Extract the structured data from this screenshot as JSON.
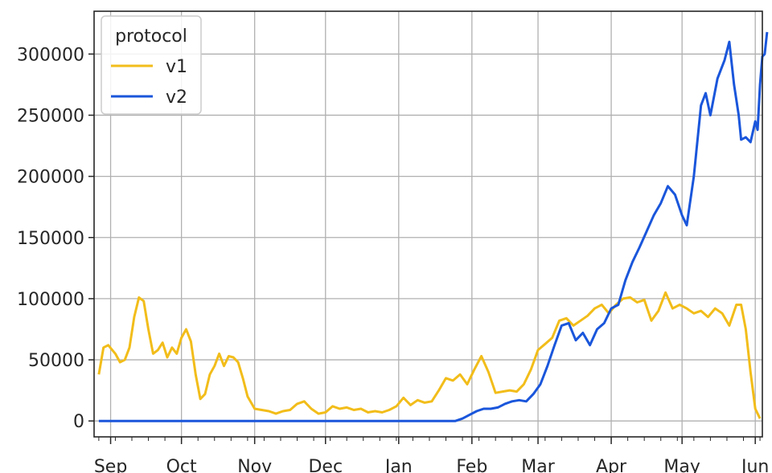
{
  "chart_data": {
    "type": "line",
    "title": "",
    "xlabel": "",
    "ylabel": "",
    "x_range": [
      "2020-08-25",
      "2021-06-04"
    ],
    "x_ticks": [
      {
        "label": "Sep",
        "date": "2020-09-01"
      },
      {
        "label": "Oct",
        "date": "2020-10-01"
      },
      {
        "label": "Nov",
        "date": "2020-11-01"
      },
      {
        "label": "Dec",
        "date": "2020-12-01"
      },
      {
        "label": "Jan",
        "date": "2021-01-01"
      },
      {
        "label": "Feb",
        "date": "2021-02-01"
      },
      {
        "label": "Mar",
        "date": "2021-03-01"
      },
      {
        "label": "Apr",
        "date": "2021-04-01"
      },
      {
        "label": "May",
        "date": "2021-05-01"
      },
      {
        "label": "Jun",
        "date": "2021-06-01"
      }
    ],
    "y_ticks": [
      0,
      50000,
      100000,
      150000,
      200000,
      250000,
      300000
    ],
    "y_tick_labels": [
      "0",
      "50000",
      "100000",
      "150000",
      "200000",
      "250000",
      "300000"
    ],
    "ylim": [
      -13000,
      335000
    ],
    "grid": true,
    "legend": {
      "title": "protocol",
      "placement": "top-left"
    },
    "series": [
      {
        "name": "v1",
        "color": "#f2bd1a",
        "points": [
          [
            "2020-08-27",
            38000
          ],
          [
            "2020-08-29",
            60000
          ],
          [
            "2020-08-31",
            62000
          ],
          [
            "2020-09-03",
            55000
          ],
          [
            "2020-09-05",
            48000
          ],
          [
            "2020-09-07",
            50000
          ],
          [
            "2020-09-09",
            60000
          ],
          [
            "2020-09-11",
            85000
          ],
          [
            "2020-09-13",
            101000
          ],
          [
            "2020-09-15",
            98000
          ],
          [
            "2020-09-17",
            75000
          ],
          [
            "2020-09-19",
            55000
          ],
          [
            "2020-09-21",
            58000
          ],
          [
            "2020-09-23",
            64000
          ],
          [
            "2020-09-25",
            52000
          ],
          [
            "2020-09-27",
            60000
          ],
          [
            "2020-09-29",
            55000
          ],
          [
            "2020-10-01",
            68000
          ],
          [
            "2020-10-03",
            75000
          ],
          [
            "2020-10-05",
            65000
          ],
          [
            "2020-10-07",
            38000
          ],
          [
            "2020-10-09",
            18000
          ],
          [
            "2020-10-11",
            22000
          ],
          [
            "2020-10-13",
            38000
          ],
          [
            "2020-10-15",
            45000
          ],
          [
            "2020-10-17",
            55000
          ],
          [
            "2020-10-19",
            45000
          ],
          [
            "2020-10-21",
            53000
          ],
          [
            "2020-10-23",
            52000
          ],
          [
            "2020-10-25",
            48000
          ],
          [
            "2020-10-27",
            35000
          ],
          [
            "2020-10-29",
            20000
          ],
          [
            "2020-11-01",
            10000
          ],
          [
            "2020-11-04",
            9000
          ],
          [
            "2020-11-07",
            8000
          ],
          [
            "2020-11-10",
            6000
          ],
          [
            "2020-11-13",
            8000
          ],
          [
            "2020-11-16",
            9000
          ],
          [
            "2020-11-19",
            14000
          ],
          [
            "2020-11-22",
            16000
          ],
          [
            "2020-11-25",
            10000
          ],
          [
            "2020-11-28",
            6000
          ],
          [
            "2020-12-01",
            7000
          ],
          [
            "2020-12-04",
            12000
          ],
          [
            "2020-12-07",
            10000
          ],
          [
            "2020-12-10",
            11000
          ],
          [
            "2020-12-13",
            9000
          ],
          [
            "2020-12-16",
            10000
          ],
          [
            "2020-12-19",
            7000
          ],
          [
            "2020-12-22",
            8000
          ],
          [
            "2020-12-25",
            7000
          ],
          [
            "2020-12-28",
            9000
          ],
          [
            "2020-12-31",
            12000
          ],
          [
            "2021-01-03",
            19000
          ],
          [
            "2021-01-06",
            13000
          ],
          [
            "2021-01-09",
            17000
          ],
          [
            "2021-01-12",
            15000
          ],
          [
            "2021-01-15",
            16000
          ],
          [
            "2021-01-18",
            25000
          ],
          [
            "2021-01-21",
            35000
          ],
          [
            "2021-01-24",
            33000
          ],
          [
            "2021-01-27",
            38000
          ],
          [
            "2021-01-30",
            30000
          ],
          [
            "2021-02-02",
            42000
          ],
          [
            "2021-02-05",
            53000
          ],
          [
            "2021-02-08",
            40000
          ],
          [
            "2021-02-11",
            23000
          ],
          [
            "2021-02-14",
            24000
          ],
          [
            "2021-02-17",
            25000
          ],
          [
            "2021-02-20",
            24000
          ],
          [
            "2021-02-23",
            30000
          ],
          [
            "2021-02-26",
            42000
          ],
          [
            "2021-03-01",
            58000
          ],
          [
            "2021-03-04",
            63000
          ],
          [
            "2021-03-07",
            68000
          ],
          [
            "2021-03-10",
            82000
          ],
          [
            "2021-03-13",
            84000
          ],
          [
            "2021-03-16",
            78000
          ],
          [
            "2021-03-19",
            82000
          ],
          [
            "2021-03-22",
            86000
          ],
          [
            "2021-03-25",
            92000
          ],
          [
            "2021-03-28",
            95000
          ],
          [
            "2021-03-31",
            88000
          ],
          [
            "2021-04-03",
            95000
          ],
          [
            "2021-04-06",
            100000
          ],
          [
            "2021-04-09",
            101000
          ],
          [
            "2021-04-12",
            97000
          ],
          [
            "2021-04-15",
            99000
          ],
          [
            "2021-04-18",
            82000
          ],
          [
            "2021-04-21",
            90000
          ],
          [
            "2021-04-24",
            105000
          ],
          [
            "2021-04-27",
            92000
          ],
          [
            "2021-04-30",
            95000
          ],
          [
            "2021-05-03",
            92000
          ],
          [
            "2021-05-06",
            88000
          ],
          [
            "2021-05-09",
            90000
          ],
          [
            "2021-05-12",
            85000
          ],
          [
            "2021-05-15",
            92000
          ],
          [
            "2021-05-18",
            88000
          ],
          [
            "2021-05-21",
            78000
          ],
          [
            "2021-05-24",
            95000
          ],
          [
            "2021-05-26",
            95000
          ],
          [
            "2021-05-28",
            75000
          ],
          [
            "2021-05-30",
            40000
          ],
          [
            "2021-06-01",
            10000
          ],
          [
            "2021-06-03",
            2000
          ]
        ]
      },
      {
        "name": "v2",
        "color": "#1a56db",
        "points": [
          [
            "2020-08-27",
            0
          ],
          [
            "2021-01-25",
            0
          ],
          [
            "2021-01-28",
            2000
          ],
          [
            "2021-01-31",
            5000
          ],
          [
            "2021-02-03",
            8000
          ],
          [
            "2021-02-06",
            10000
          ],
          [
            "2021-02-09",
            10000
          ],
          [
            "2021-02-12",
            11000
          ],
          [
            "2021-02-15",
            14000
          ],
          [
            "2021-02-18",
            16000
          ],
          [
            "2021-02-21",
            17000
          ],
          [
            "2021-02-24",
            16000
          ],
          [
            "2021-02-27",
            22000
          ],
          [
            "2021-03-02",
            30000
          ],
          [
            "2021-03-05",
            45000
          ],
          [
            "2021-03-08",
            62000
          ],
          [
            "2021-03-11",
            78000
          ],
          [
            "2021-03-14",
            80000
          ],
          [
            "2021-03-17",
            66000
          ],
          [
            "2021-03-20",
            72000
          ],
          [
            "2021-03-23",
            62000
          ],
          [
            "2021-03-26",
            75000
          ],
          [
            "2021-03-29",
            80000
          ],
          [
            "2021-04-01",
            92000
          ],
          [
            "2021-04-04",
            95000
          ],
          [
            "2021-04-07",
            115000
          ],
          [
            "2021-04-10",
            130000
          ],
          [
            "2021-04-13",
            142000
          ],
          [
            "2021-04-16",
            155000
          ],
          [
            "2021-04-19",
            168000
          ],
          [
            "2021-04-22",
            178000
          ],
          [
            "2021-04-25",
            192000
          ],
          [
            "2021-04-28",
            185000
          ],
          [
            "2021-05-01",
            168000
          ],
          [
            "2021-05-03",
            160000
          ],
          [
            "2021-05-06",
            200000
          ],
          [
            "2021-05-09",
            258000
          ],
          [
            "2021-05-11",
            268000
          ],
          [
            "2021-05-13",
            250000
          ],
          [
            "2021-05-16",
            280000
          ],
          [
            "2021-05-19",
            295000
          ],
          [
            "2021-05-21",
            310000
          ],
          [
            "2021-05-23",
            275000
          ],
          [
            "2021-05-25",
            250000
          ],
          [
            "2021-05-26",
            230000
          ],
          [
            "2021-05-28",
            232000
          ],
          [
            "2021-05-30",
            228000
          ],
          [
            "2021-06-01",
            245000
          ],
          [
            "2021-06-02",
            238000
          ],
          [
            "2021-06-03",
            275000
          ],
          [
            "2021-06-04",
            298000
          ],
          [
            "2021-06-05",
            300000
          ],
          [
            "2021-06-06",
            318000
          ]
        ]
      }
    ]
  }
}
